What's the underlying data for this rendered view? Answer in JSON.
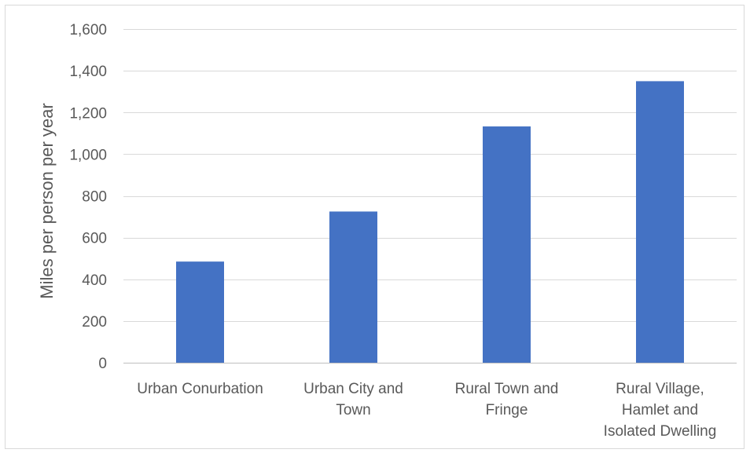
{
  "chart_data": {
    "type": "bar",
    "title": "",
    "xlabel": "",
    "ylabel": "Miles per person per year",
    "categories": [
      [
        "Urban Conurbation"
      ],
      [
        "Urban City and",
        "Town"
      ],
      [
        "Rural Town and",
        "Fringe"
      ],
      [
        "Rural Village,",
        "Hamlet and",
        "Isolated Dwelling"
      ]
    ],
    "values": [
      485,
      725,
      1133,
      1350
    ],
    "ylim": [
      0,
      1600
    ],
    "yticks": [
      0,
      200,
      400,
      600,
      800,
      1000,
      1200,
      1400,
      1600
    ],
    "ytick_labels": [
      "0",
      "200",
      "400",
      "600",
      "800",
      "1,000",
      "1,200",
      "1,400",
      "1,600"
    ],
    "bar_color": "#4472c4",
    "grid": true,
    "legend": "none"
  }
}
